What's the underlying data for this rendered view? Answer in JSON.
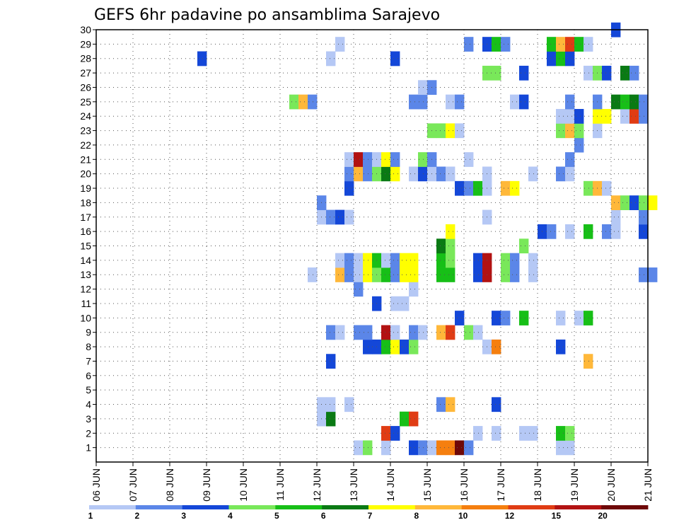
{
  "chart_data": {
    "type": "heatmap",
    "title": "GEFS 6hr padavine po ansamblima Sarajevo",
    "xlabel": "",
    "ylabel": "",
    "x_tick_labels": [
      "06 JUN",
      "07 JUN",
      "08 JUN",
      "09 JUN",
      "10 JUN",
      "11 JUN",
      "12 JUN",
      "13 JUN",
      "14 JUN",
      "15 JUN",
      "16 JUN",
      "17 JUN",
      "18 JUN",
      "19 JUN",
      "20 JUN",
      "21 JUN"
    ],
    "y_tick_labels": [
      "1",
      "2",
      "3",
      "4",
      "5",
      "6",
      "7",
      "8",
      "9",
      "10",
      "11",
      "12",
      "13",
      "14",
      "15",
      "16",
      "17",
      "18",
      "19",
      "20",
      "21",
      "22",
      "23",
      "24",
      "25",
      "26",
      "27",
      "28",
      "29",
      "30"
    ],
    "x_range_days": [
      0,
      15
    ],
    "y_range": [
      0,
      30
    ],
    "grid": true,
    "levels": [
      "1",
      "2",
      "3",
      "4",
      "5",
      "6",
      "7",
      "8",
      "10",
      "12",
      "15",
      "20"
    ],
    "colors": [
      "#b5c8f5",
      "#5b86e8",
      "#1447d8",
      "#79e85a",
      "#17bf17",
      "#0a7a14",
      "#ffff00",
      "#ffb83a",
      "#f57f0f",
      "#e03c14",
      "#b21212",
      "#6e0808"
    ],
    "cells": [
      {
        "member": 1,
        "step": 28,
        "level": 1
      },
      {
        "member": 1,
        "step": 29,
        "level": 4
      },
      {
        "member": 1,
        "step": 31,
        "level": 1
      },
      {
        "member": 1,
        "step": 34,
        "level": 3
      },
      {
        "member": 1,
        "step": 35,
        "level": 2
      },
      {
        "member": 1,
        "step": 36,
        "level": 1
      },
      {
        "member": 1,
        "step": 37,
        "level": 9
      },
      {
        "member": 1,
        "step": 38,
        "level": 9
      },
      {
        "member": 1,
        "step": 39,
        "level": 12
      },
      {
        "member": 1,
        "step": 40,
        "level": 2
      },
      {
        "member": 1,
        "step": 50,
        "level": 1
      },
      {
        "member": 1,
        "step": 51,
        "level": 1
      },
      {
        "member": 2,
        "step": 31,
        "level": 10
      },
      {
        "member": 2,
        "step": 32,
        "level": 3
      },
      {
        "member": 2,
        "step": 41,
        "level": 1
      },
      {
        "member": 2,
        "step": 43,
        "level": 1
      },
      {
        "member": 2,
        "step": 46,
        "level": 1
      },
      {
        "member": 2,
        "step": 47,
        "level": 1
      },
      {
        "member": 2,
        "step": 50,
        "level": 5
      },
      {
        "member": 2,
        "step": 51,
        "level": 4
      },
      {
        "member": 3,
        "step": 24,
        "level": 1
      },
      {
        "member": 3,
        "step": 25,
        "level": 6
      },
      {
        "member": 3,
        "step": 33,
        "level": 5
      },
      {
        "member": 3,
        "step": 34,
        "level": 10
      },
      {
        "member": 4,
        "step": 24,
        "level": 1
      },
      {
        "member": 4,
        "step": 25,
        "level": 1
      },
      {
        "member": 4,
        "step": 27,
        "level": 1
      },
      {
        "member": 4,
        "step": 37,
        "level": 2
      },
      {
        "member": 4,
        "step": 38,
        "level": 8
      },
      {
        "member": 4,
        "step": 43,
        "level": 3
      },
      {
        "member": 7,
        "step": 25,
        "level": 3
      },
      {
        "member": 7,
        "step": 53,
        "level": 8
      },
      {
        "member": 8,
        "step": 29,
        "level": 3
      },
      {
        "member": 8,
        "step": 30,
        "level": 3
      },
      {
        "member": 8,
        "step": 31,
        "level": 5
      },
      {
        "member": 8,
        "step": 32,
        "level": 7
      },
      {
        "member": 8,
        "step": 33,
        "level": 3
      },
      {
        "member": 8,
        "step": 34,
        "level": 4
      },
      {
        "member": 8,
        "step": 42,
        "level": 1
      },
      {
        "member": 8,
        "step": 43,
        "level": 9
      },
      {
        "member": 8,
        "step": 50,
        "level": 3
      },
      {
        "member": 9,
        "step": 25,
        "level": 2
      },
      {
        "member": 9,
        "step": 26,
        "level": 1
      },
      {
        "member": 9,
        "step": 28,
        "level": 2
      },
      {
        "member": 9,
        "step": 29,
        "level": 2
      },
      {
        "member": 9,
        "step": 31,
        "level": 11
      },
      {
        "member": 9,
        "step": 32,
        "level": 1
      },
      {
        "member": 9,
        "step": 34,
        "level": 2
      },
      {
        "member": 9,
        "step": 35,
        "level": 1
      },
      {
        "member": 9,
        "step": 37,
        "level": 8
      },
      {
        "member": 9,
        "step": 38,
        "level": 10
      },
      {
        "member": 9,
        "step": 40,
        "level": 4
      },
      {
        "member": 9,
        "step": 41,
        "level": 1
      },
      {
        "member": 10,
        "step": 39,
        "level": 3
      },
      {
        "member": 10,
        "step": 43,
        "level": 3
      },
      {
        "member": 10,
        "step": 44,
        "level": 2
      },
      {
        "member": 10,
        "step": 46,
        "level": 5
      },
      {
        "member": 10,
        "step": 50,
        "level": 1
      },
      {
        "member": 10,
        "step": 52,
        "level": 1
      },
      {
        "member": 10,
        "step": 53,
        "level": 5
      },
      {
        "member": 11,
        "step": 30,
        "level": 3
      },
      {
        "member": 11,
        "step": 32,
        "level": 1
      },
      {
        "member": 11,
        "step": 33,
        "level": 1
      },
      {
        "member": 12,
        "step": 28,
        "level": 2
      },
      {
        "member": 12,
        "step": 34,
        "level": 1
      },
      {
        "member": 13,
        "step": 23,
        "level": 1
      },
      {
        "member": 13,
        "step": 26,
        "level": 8
      },
      {
        "member": 13,
        "step": 27,
        "level": 2
      },
      {
        "member": 13,
        "step": 28,
        "level": 1
      },
      {
        "member": 13,
        "step": 29,
        "level": 7
      },
      {
        "member": 13,
        "step": 30,
        "level": 4
      },
      {
        "member": 13,
        "step": 31,
        "level": 5
      },
      {
        "member": 13,
        "step": 32,
        "level": 2
      },
      {
        "member": 13,
        "step": 33,
        "level": 7
      },
      {
        "member": 13,
        "step": 34,
        "level": 7
      },
      {
        "member": 13,
        "step": 37,
        "level": 5
      },
      {
        "member": 13,
        "step": 38,
        "level": 5
      },
      {
        "member": 13,
        "step": 41,
        "level": 3
      },
      {
        "member": 13,
        "step": 42,
        "level": 11
      },
      {
        "member": 13,
        "step": 44,
        "level": 4
      },
      {
        "member": 13,
        "step": 45,
        "level": 2
      },
      {
        "member": 13,
        "step": 47,
        "level": 1
      },
      {
        "member": 13,
        "step": 59,
        "level": 2
      },
      {
        "member": 13,
        "step": 60,
        "level": 2
      },
      {
        "member": 14,
        "step": 26,
        "level": 1
      },
      {
        "member": 14,
        "step": 27,
        "level": 2
      },
      {
        "member": 14,
        "step": 28,
        "level": 1
      },
      {
        "member": 14,
        "step": 29,
        "level": 7
      },
      {
        "member": 14,
        "step": 30,
        "level": 5
      },
      {
        "member": 14,
        "step": 31,
        "level": 1
      },
      {
        "member": 14,
        "step": 32,
        "level": 2
      },
      {
        "member": 14,
        "step": 33,
        "level": 7
      },
      {
        "member": 14,
        "step": 34,
        "level": 7
      },
      {
        "member": 14,
        "step": 37,
        "level": 5
      },
      {
        "member": 14,
        "step": 38,
        "level": 4
      },
      {
        "member": 14,
        "step": 41,
        "level": 3
      },
      {
        "member": 14,
        "step": 42,
        "level": 11
      },
      {
        "member": 14,
        "step": 44,
        "level": 4
      },
      {
        "member": 14,
        "step": 45,
        "level": 2
      },
      {
        "member": 14,
        "step": 47,
        "level": 1
      },
      {
        "member": 15,
        "step": 37,
        "level": 6
      },
      {
        "member": 15,
        "step": 38,
        "level": 4
      },
      {
        "member": 15,
        "step": 46,
        "level": 4
      },
      {
        "member": 16,
        "step": 38,
        "level": 7
      },
      {
        "member": 16,
        "step": 48,
        "level": 3
      },
      {
        "member": 16,
        "step": 49,
        "level": 2
      },
      {
        "member": 16,
        "step": 51,
        "level": 1
      },
      {
        "member": 16,
        "step": 53,
        "level": 5
      },
      {
        "member": 16,
        "step": 55,
        "level": 2
      },
      {
        "member": 16,
        "step": 56,
        "level": 1
      },
      {
        "member": 16,
        "step": 59,
        "level": 3
      },
      {
        "member": 17,
        "step": 24,
        "level": 1
      },
      {
        "member": 17,
        "step": 25,
        "level": 2
      },
      {
        "member": 17,
        "step": 26,
        "level": 3
      },
      {
        "member": 17,
        "step": 27,
        "level": 1
      },
      {
        "member": 17,
        "step": 42,
        "level": 1
      },
      {
        "member": 17,
        "step": 56,
        "level": 1
      },
      {
        "member": 17,
        "step": 59,
        "level": 2
      },
      {
        "member": 18,
        "step": 24,
        "level": 2
      },
      {
        "member": 18,
        "step": 56,
        "level": 8
      },
      {
        "member": 18,
        "step": 57,
        "level": 4
      },
      {
        "member": 18,
        "step": 58,
        "level": 3
      },
      {
        "member": 18,
        "step": 59,
        "level": 4
      },
      {
        "member": 18,
        "step": 60,
        "level": 7
      },
      {
        "member": 19,
        "step": 27,
        "level": 3
      },
      {
        "member": 19,
        "step": 39,
        "level": 3
      },
      {
        "member": 19,
        "step": 40,
        "level": 2
      },
      {
        "member": 19,
        "step": 41,
        "level": 5
      },
      {
        "member": 19,
        "step": 42,
        "level": 1
      },
      {
        "member": 19,
        "step": 44,
        "level": 8
      },
      {
        "member": 19,
        "step": 45,
        "level": 7
      },
      {
        "member": 19,
        "step": 53,
        "level": 4
      },
      {
        "member": 19,
        "step": 54,
        "level": 8
      },
      {
        "member": 19,
        "step": 55,
        "level": 1
      },
      {
        "member": 20,
        "step": 27,
        "level": 2
      },
      {
        "member": 20,
        "step": 28,
        "level": 8
      },
      {
        "member": 20,
        "step": 29,
        "level": 2
      },
      {
        "member": 20,
        "step": 30,
        "level": 4
      },
      {
        "member": 20,
        "step": 31,
        "level": 6
      },
      {
        "member": 20,
        "step": 32,
        "level": 7
      },
      {
        "member": 20,
        "step": 34,
        "level": 1
      },
      {
        "member": 20,
        "step": 35,
        "level": 3
      },
      {
        "member": 20,
        "step": 36,
        "level": 1
      },
      {
        "member": 20,
        "step": 37,
        "level": 2
      },
      {
        "member": 20,
        "step": 38,
        "level": 1
      },
      {
        "member": 20,
        "step": 42,
        "level": 1
      },
      {
        "member": 20,
        "step": 47,
        "level": 1
      },
      {
        "member": 20,
        "step": 50,
        "level": 2
      },
      {
        "member": 20,
        "step": 51,
        "level": 1
      },
      {
        "member": 21,
        "step": 27,
        "level": 1
      },
      {
        "member": 21,
        "step": 28,
        "level": 11
      },
      {
        "member": 21,
        "step": 29,
        "level": 2
      },
      {
        "member": 21,
        "step": 30,
        "level": 1
      },
      {
        "member": 21,
        "step": 31,
        "level": 7
      },
      {
        "member": 21,
        "step": 32,
        "level": 2
      },
      {
        "member": 21,
        "step": 35,
        "level": 4
      },
      {
        "member": 21,
        "step": 36,
        "level": 2
      },
      {
        "member": 21,
        "step": 40,
        "level": 1
      },
      {
        "member": 21,
        "step": 51,
        "level": 2
      },
      {
        "member": 22,
        "step": 52,
        "level": 2
      },
      {
        "member": 23,
        "step": 36,
        "level": 4
      },
      {
        "member": 23,
        "step": 37,
        "level": 4
      },
      {
        "member": 23,
        "step": 38,
        "level": 7
      },
      {
        "member": 23,
        "step": 39,
        "level": 1
      },
      {
        "member": 23,
        "step": 50,
        "level": 4
      },
      {
        "member": 23,
        "step": 51,
        "level": 8
      },
      {
        "member": 23,
        "step": 52,
        "level": 4
      },
      {
        "member": 23,
        "step": 54,
        "level": 1
      },
      {
        "member": 24,
        "step": 50,
        "level": 1
      },
      {
        "member": 24,
        "step": 51,
        "level": 1
      },
      {
        "member": 24,
        "step": 52,
        "level": 3
      },
      {
        "member": 24,
        "step": 54,
        "level": 7
      },
      {
        "member": 24,
        "step": 55,
        "level": 7
      },
      {
        "member": 24,
        "step": 57,
        "level": 1
      },
      {
        "member": 24,
        "step": 58,
        "level": 10
      },
      {
        "member": 24,
        "step": 59,
        "level": 2
      },
      {
        "member": 25,
        "step": 21,
        "level": 4
      },
      {
        "member": 25,
        "step": 22,
        "level": 8
      },
      {
        "member": 25,
        "step": 23,
        "level": 2
      },
      {
        "member": 25,
        "step": 34,
        "level": 2
      },
      {
        "member": 25,
        "step": 35,
        "level": 2
      },
      {
        "member": 25,
        "step": 38,
        "level": 1
      },
      {
        "member": 25,
        "step": 39,
        "level": 2
      },
      {
        "member": 25,
        "step": 45,
        "level": 1
      },
      {
        "member": 25,
        "step": 46,
        "level": 3
      },
      {
        "member": 25,
        "step": 51,
        "level": 2
      },
      {
        "member": 25,
        "step": 54,
        "level": 2
      },
      {
        "member": 25,
        "step": 56,
        "level": 6
      },
      {
        "member": 25,
        "step": 57,
        "level": 5
      },
      {
        "member": 25,
        "step": 58,
        "level": 6
      },
      {
        "member": 25,
        "step": 59,
        "level": 2
      },
      {
        "member": 26,
        "step": 35,
        "level": 1
      },
      {
        "member": 26,
        "step": 36,
        "level": 2
      },
      {
        "member": 27,
        "step": 42,
        "level": 4
      },
      {
        "member": 27,
        "step": 43,
        "level": 4
      },
      {
        "member": 27,
        "step": 46,
        "level": 3
      },
      {
        "member": 27,
        "step": 53,
        "level": 1
      },
      {
        "member": 27,
        "step": 54,
        "level": 4
      },
      {
        "member": 27,
        "step": 55,
        "level": 3
      },
      {
        "member": 27,
        "step": 57,
        "level": 6
      },
      {
        "member": 27,
        "step": 58,
        "level": 2
      },
      {
        "member": 28,
        "step": 11,
        "level": 3
      },
      {
        "member": 28,
        "step": 25,
        "level": 1
      },
      {
        "member": 28,
        "step": 32,
        "level": 3
      },
      {
        "member": 28,
        "step": 49,
        "level": 3
      },
      {
        "member": 28,
        "step": 50,
        "level": 5
      },
      {
        "member": 28,
        "step": 51,
        "level": 3
      },
      {
        "member": 29,
        "step": 26,
        "level": 1
      },
      {
        "member": 29,
        "step": 40,
        "level": 2
      },
      {
        "member": 29,
        "step": 42,
        "level": 3
      },
      {
        "member": 29,
        "step": 43,
        "level": 5
      },
      {
        "member": 29,
        "step": 44,
        "level": 2
      },
      {
        "member": 29,
        "step": 49,
        "level": 5
      },
      {
        "member": 29,
        "step": 50,
        "level": 8
      },
      {
        "member": 29,
        "step": 51,
        "level": 10
      },
      {
        "member": 29,
        "step": 52,
        "level": 5
      },
      {
        "member": 29,
        "step": 53,
        "level": 1
      },
      {
        "member": 30,
        "step": 56,
        "level": 3
      }
    ]
  }
}
